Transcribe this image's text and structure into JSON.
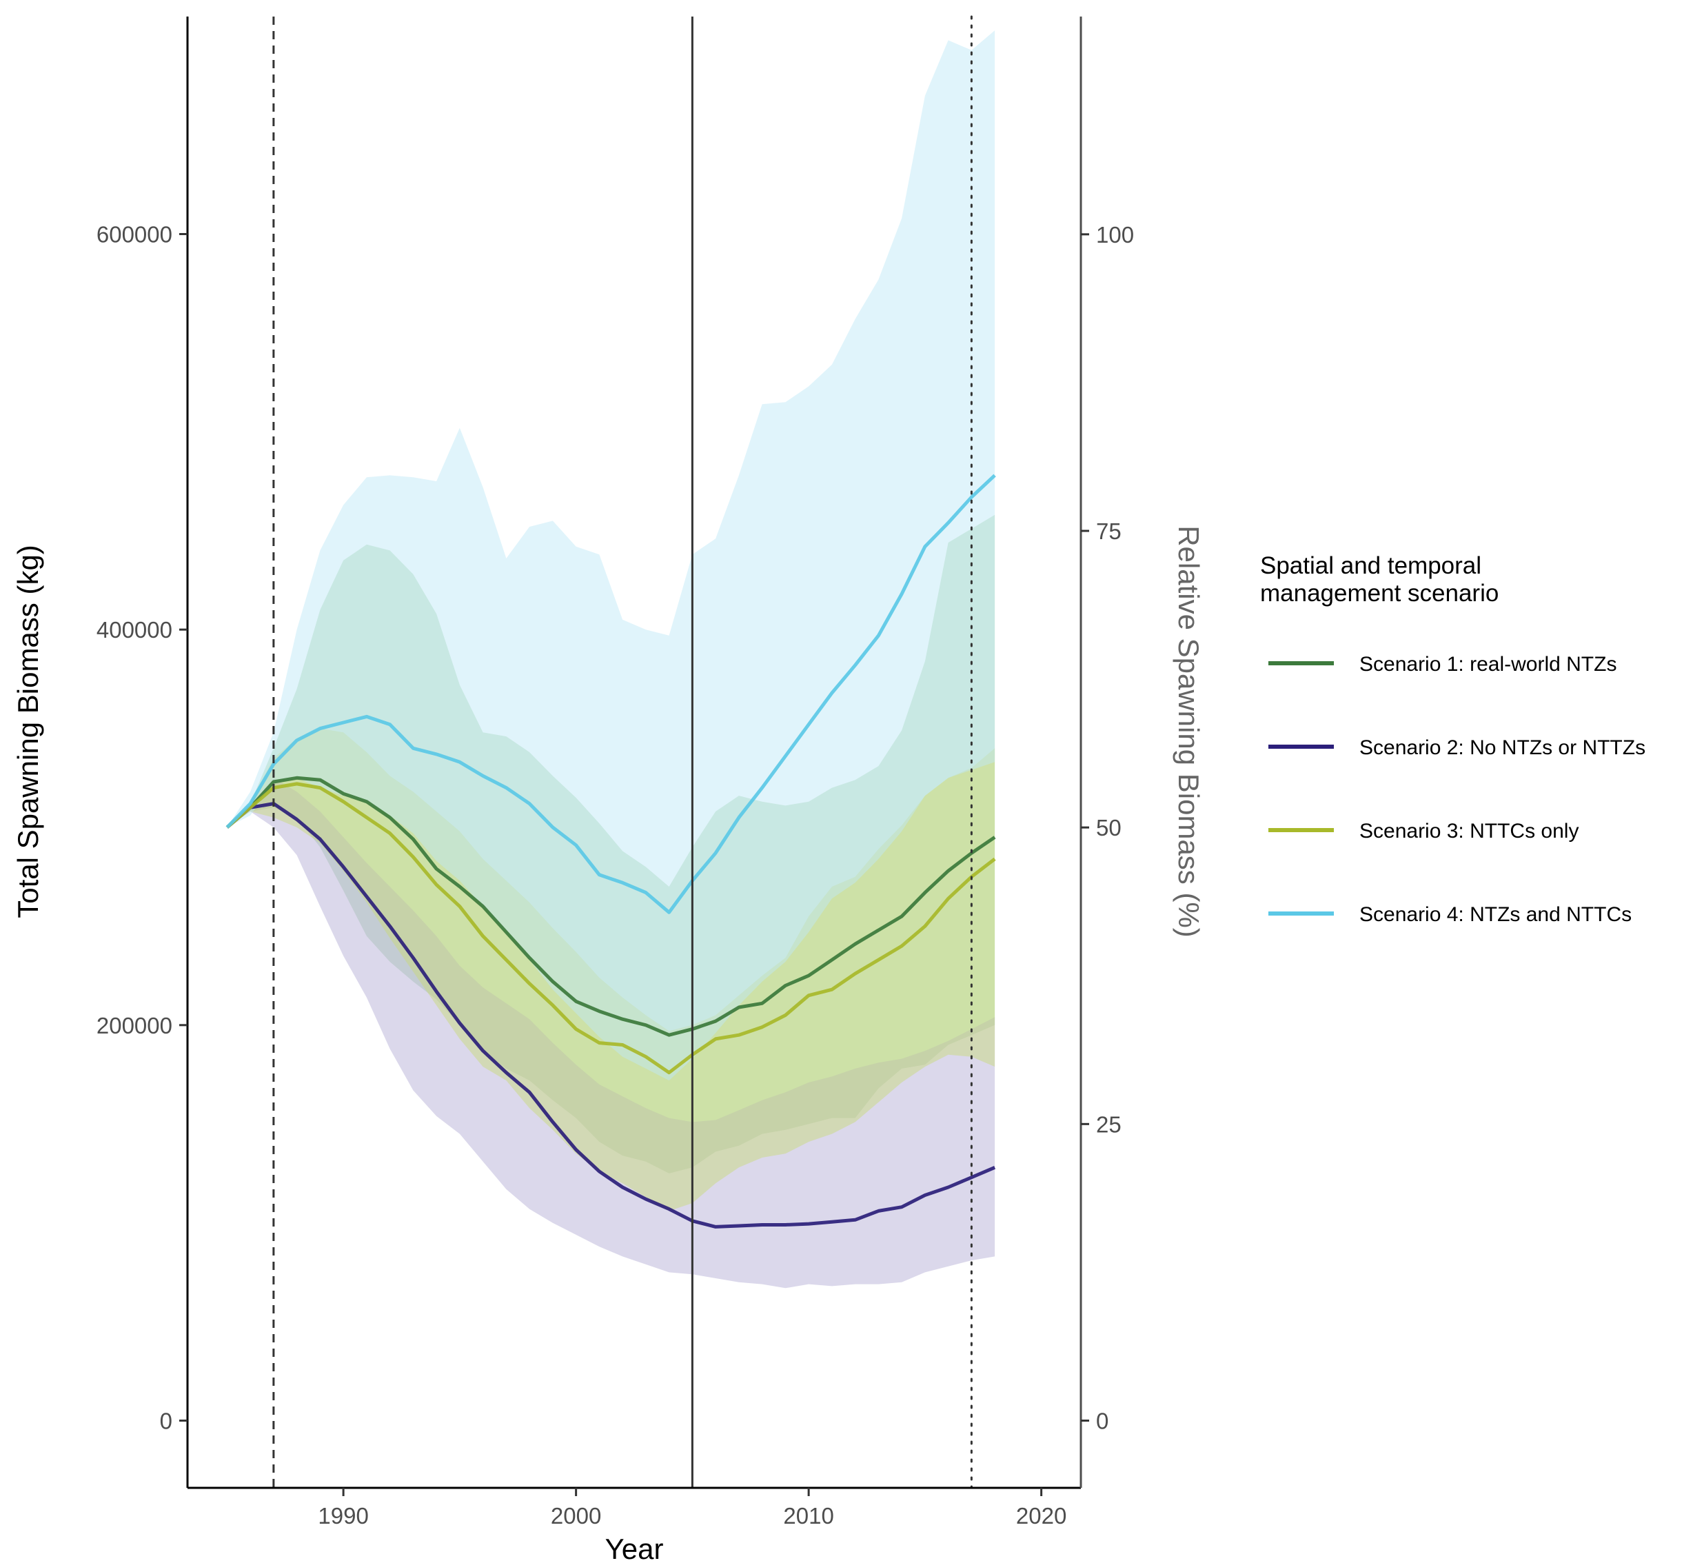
{
  "chart_data": {
    "type": "line",
    "xlabel": "Year",
    "ylabel": "Total Spawning Biomass (kg)",
    "ylabel_right": "Relative Spawning Biomass (%)",
    "xlim": [
      1983.3,
      2021.7
    ],
    "ylim": [
      -34000,
      710000
    ],
    "ylim_right_percent_per_kg": 0.0001667,
    "xticks": [
      1990,
      2000,
      2010,
      2020
    ],
    "yticks": [
      0,
      200000,
      400000,
      600000
    ],
    "yticks_right": [
      0,
      25,
      50,
      75,
      100
    ],
    "grid": false,
    "legend_position": "right",
    "legend_title_lines": [
      "Spatial and temporal",
      "management scenario"
    ],
    "vlines": [
      {
        "x": 1987,
        "style": "dashed"
      },
      {
        "x": 2005,
        "style": "solid"
      },
      {
        "x": 2017,
        "style": "dotted"
      }
    ],
    "x": [
      1985,
      1986,
      1987,
      1988,
      1989,
      1990,
      1991,
      1992,
      1993,
      1994,
      1995,
      1996,
      1997,
      1998,
      1999,
      2000,
      2001,
      2002,
      2003,
      2004,
      2005,
      2006,
      2007,
      2008,
      2009,
      2010,
      2011,
      2012,
      2013,
      2014,
      2015,
      2016,
      2017,
      2018
    ],
    "series": [
      {
        "name": "Scenario 1: real-world NTZs",
        "color": "#3c7a3c",
        "band_color": "#9ed09e",
        "values": [
          300000,
          310000,
          323000,
          325000,
          324000,
          317000,
          313000,
          305000,
          294000,
          279000,
          270000,
          260000,
          247000,
          234000,
          222000,
          212000,
          207000,
          203000,
          200000,
          195000,
          198000,
          202000,
          209000,
          211000,
          220000,
          225000,
          233000,
          241000,
          248000,
          255000,
          267000,
          278000,
          287000,
          295000
        ],
        "upper": [
          300000,
          312000,
          340000,
          370000,
          410000,
          435000,
          443000,
          440000,
          428000,
          408000,
          372000,
          348000,
          346000,
          338000,
          326000,
          315000,
          302000,
          288000,
          280000,
          270000,
          290000,
          308000,
          316000,
          313000,
          311000,
          313000,
          320000,
          324000,
          331000,
          349000,
          384000,
          444000,
          451000,
          458000
        ],
        "lower": [
          300000,
          308000,
          310000,
          305000,
          290000,
          268000,
          245000,
          232000,
          222000,
          213000,
          200000,
          187000,
          178000,
          172000,
          162000,
          153000,
          141000,
          134000,
          131000,
          125000,
          128000,
          136000,
          139000,
          145000,
          147000,
          150000,
          153000,
          153000,
          168000,
          178000,
          180000,
          190000,
          195000,
          200000
        ]
      },
      {
        "name": "Scenario 2: No NTZs or NTTZs",
        "color": "#2b1f7a",
        "band_color": "#b4aed6",
        "values": [
          300000,
          310000,
          312000,
          304000,
          294000,
          280000,
          265000,
          250000,
          234000,
          217000,
          201000,
          187000,
          176000,
          166000,
          151000,
          137000,
          126000,
          118000,
          112000,
          107000,
          101000,
          98000,
          98500,
          99000,
          99000,
          99500,
          100500,
          101500,
          106000,
          108000,
          114000,
          118000,
          123000,
          128000
        ],
        "upper": [
          300000,
          311000,
          325000,
          318000,
          308000,
          295000,
          282000,
          270000,
          258000,
          245000,
          230000,
          219000,
          211000,
          203000,
          191000,
          180000,
          170000,
          164000,
          158000,
          153000,
          151000,
          152000,
          157000,
          162000,
          166000,
          171000,
          174000,
          178000,
          181000,
          183000,
          187000,
          192000,
          198000,
          204000
        ],
        "lower": [
          300000,
          308000,
          300000,
          286000,
          260000,
          235000,
          214000,
          188000,
          167000,
          154000,
          145000,
          131000,
          117000,
          107000,
          100000,
          94000,
          88000,
          83000,
          79000,
          75000,
          74000,
          72000,
          70000,
          69000,
          67000,
          69000,
          68000,
          69000,
          69000,
          70000,
          75000,
          78000,
          81000,
          83000
        ]
      },
      {
        "name": "Scenario 3: NTTCs only",
        "color": "#a8b92a",
        "band_color": "#c9d97a",
        "values": [
          300000,
          310000,
          320000,
          322000,
          320000,
          313000,
          305000,
          297000,
          285000,
          271000,
          260000,
          245000,
          233000,
          221000,
          210000,
          198000,
          191000,
          190000,
          184000,
          176000,
          185000,
          193000,
          195000,
          199000,
          205000,
          215000,
          218000,
          226000,
          233000,
          240000,
          250000,
          264000,
          275000,
          284000
        ],
        "upper": [
          300000,
          312000,
          335000,
          345000,
          350000,
          348000,
          338000,
          326000,
          318000,
          308000,
          298000,
          284000,
          273000,
          262000,
          249000,
          237000,
          224000,
          214000,
          205000,
          197000,
          200000,
          205000,
          215000,
          225000,
          234000,
          255000,
          270000,
          275000,
          289000,
          301000,
          316000,
          325000,
          330000,
          340000
        ],
        "lower": [
          300000,
          308000,
          305000,
          300000,
          292000,
          278000,
          262000,
          244000,
          227000,
          210000,
          193000,
          179000,
          172000,
          158000,
          147000,
          135000,
          126000,
          120000,
          113000,
          106000,
          110000,
          120000,
          128000,
          133000,
          135000,
          141000,
          145000,
          151000,
          161000,
          171000,
          179000,
          185000,
          184000,
          179000
        ]
      },
      {
        "name": "Scenario 4: NTZs and NTTCs",
        "color": "#5bc8e6",
        "band_color": "#bfe9f7",
        "values": [
          300000,
          312000,
          332000,
          344000,
          350000,
          353000,
          356000,
          352000,
          340000,
          337000,
          333000,
          326000,
          320000,
          312000,
          300000,
          291000,
          276000,
          272000,
          267000,
          257000,
          273000,
          287000,
          305000,
          320000,
          336000,
          352000,
          368000,
          382000,
          397000,
          418000,
          442000,
          454000,
          467000,
          478000
        ],
        "upper": [
          300000,
          318000,
          348000,
          400000,
          440000,
          463000,
          477000,
          478000,
          477000,
          475000,
          502000,
          472000,
          436000,
          452000,
          455000,
          442000,
          438000,
          405000,
          400000,
          397000,
          438000,
          446000,
          478000,
          514000,
          515000,
          523000,
          534000,
          557000,
          577000,
          608000,
          670000,
          698000,
          693000,
          703000
        ],
        "lower": [
          300000,
          306000,
          322000,
          325000,
          320000,
          316000,
          313000,
          306000,
          297000,
          283000,
          273000,
          260000,
          247000,
          233000,
          218000,
          206000,
          194000,
          184000,
          178000,
          172000,
          183000,
          196000,
          210000,
          222000,
          232000,
          247000,
          264000,
          272000,
          284000,
          298000,
          316000,
          325000,
          329000,
          333000
        ]
      }
    ]
  }
}
